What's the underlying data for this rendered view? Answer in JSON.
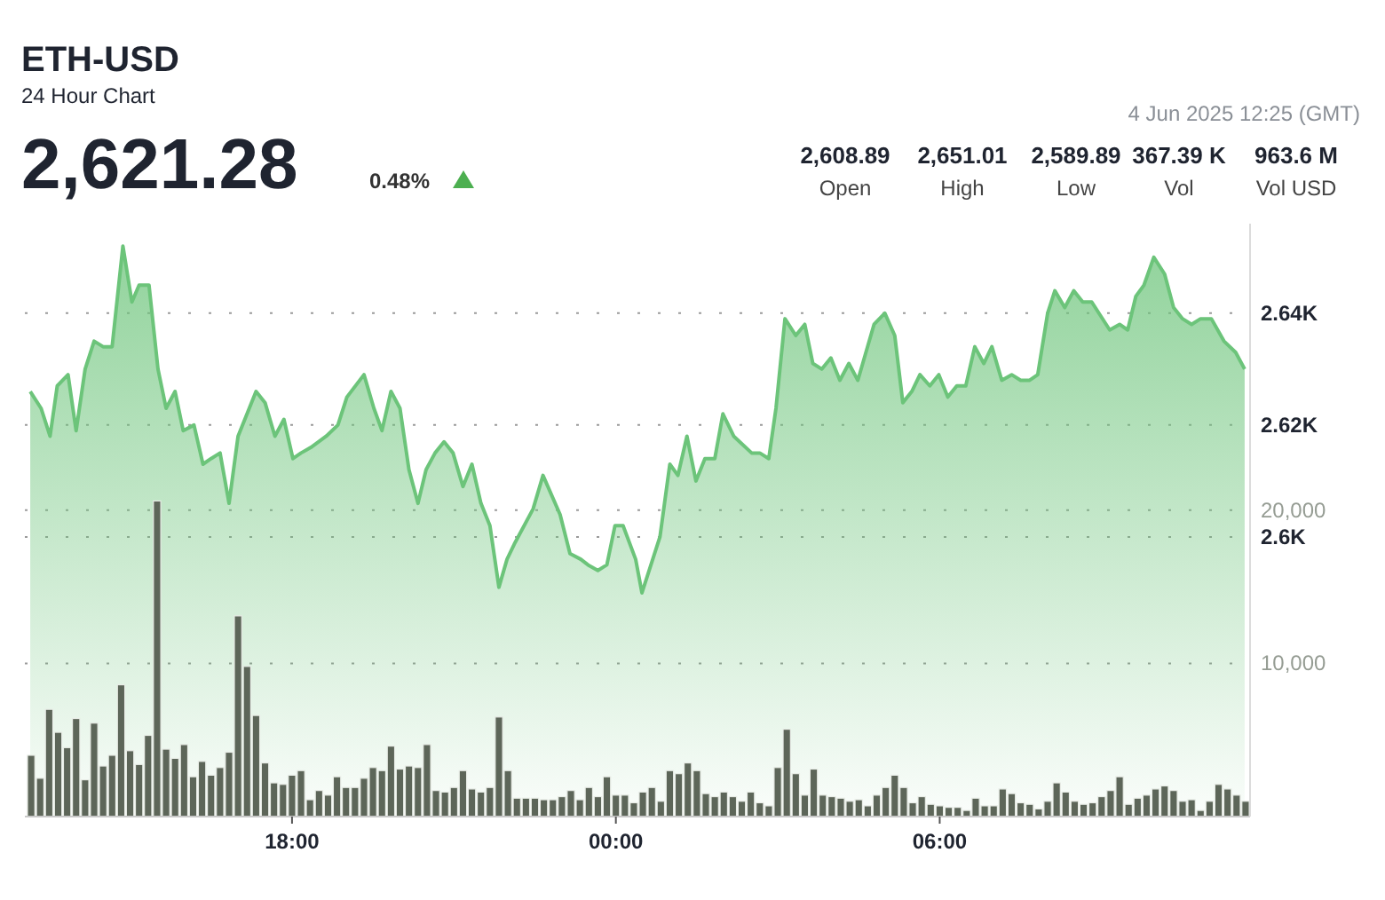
{
  "chart_data": {
    "type": "area",
    "title": "ETH-USD",
    "subtitle": "24 Hour Chart",
    "annotations": [
      "2,621.28",
      "0.48%",
      "4 Jun 2025 12:25 (GMT)",
      "2,608.89",
      "Open",
      "2,651.01",
      "High",
      "2,589.89",
      "Low",
      "367.39 K",
      "Vol",
      "963.6 M",
      "Vol USD"
    ],
    "xlim": [
      "2025-06-03T13:03",
      "2025-06-04T11:45"
    ],
    "xticks": [
      {
        "value": "2025-06-03T18:00",
        "label": "18:00"
      },
      {
        "value": "2025-06-04T00:00",
        "label": "00:00"
      },
      {
        "value": "2025-06-04T06:00",
        "label": "06:00"
      }
    ],
    "ylim": [
      2550,
      2656
    ],
    "yticks": [
      {
        "value": 2600,
        "label": "2.6K"
      },
      {
        "value": 2620,
        "label": "2.62K"
      },
      {
        "value": 2640,
        "label": "2.64K"
      }
    ],
    "y2lim": [
      0,
      38700
    ],
    "y2ticks": [
      {
        "value": 10000,
        "label": "10,000"
      },
      {
        "value": 20000,
        "label": "20,000"
      }
    ],
    "grid": "y",
    "series": [
      {
        "color": "#6cc47a",
        "x": [
          "2025-06-03T13:09",
          "2025-06-03T13:21",
          "2025-06-03T13:31",
          "2025-06-03T13:39",
          "2025-06-03T13:51",
          "2025-06-03T14:00",
          "2025-06-03T14:10",
          "2025-06-03T14:20",
          "2025-06-03T14:30",
          "2025-06-03T14:40",
          "2025-06-03T14:52",
          "2025-06-03T15:02",
          "2025-06-03T15:10",
          "2025-06-03T15:21",
          "2025-06-03T15:31",
          "2025-06-03T15:40",
          "2025-06-03T15:50",
          "2025-06-03T15:59",
          "2025-06-03T16:11",
          "2025-06-03T16:21",
          "2025-06-03T16:30",
          "2025-06-03T16:40",
          "2025-06-03T16:50",
          "2025-06-03T17:00",
          "2025-06-03T17:20",
          "2025-06-03T17:30",
          "2025-06-03T17:41",
          "2025-06-03T17:51",
          "2025-06-03T18:01",
          "2025-06-03T18:10",
          "2025-06-03T18:21",
          "2025-06-03T18:38",
          "2025-06-03T18:51",
          "2025-06-03T19:01",
          "2025-06-03T19:20",
          "2025-06-03T19:31",
          "2025-06-03T19:40",
          "2025-06-03T19:50",
          "2025-06-03T20:00",
          "2025-06-03T20:10",
          "2025-06-03T20:20",
          "2025-06-03T20:29",
          "2025-06-03T20:39",
          "2025-06-03T20:49",
          "2025-06-03T20:59",
          "2025-06-03T21:10",
          "2025-06-03T21:20",
          "2025-06-03T21:30",
          "2025-06-03T21:40",
          "2025-06-03T21:50",
          "2025-06-03T21:59",
          "2025-06-03T22:08",
          "2025-06-03T22:28",
          "2025-06-03T22:39",
          "2025-06-03T22:58",
          "2025-06-03T23:09",
          "2025-06-03T23:21",
          "2025-06-03T23:29",
          "2025-06-03T23:40",
          "2025-06-03T23:50",
          "2025-06-03T23:59",
          "2025-06-04T00:08",
          "2025-06-04T00:22",
          "2025-06-04T00:29",
          "2025-06-04T00:49",
          "2025-06-04T01:00",
          "2025-06-04T01:09",
          "2025-06-04T01:19",
          "2025-06-04T01:29",
          "2025-06-04T01:39",
          "2025-06-04T01:50",
          "2025-06-04T01:59",
          "2025-06-04T02:11",
          "2025-06-04T02:31",
          "2025-06-04T02:40",
          "2025-06-04T02:50",
          "2025-06-04T02:58",
          "2025-06-04T03:08",
          "2025-06-04T03:20",
          "2025-06-04T03:30",
          "2025-06-04T03:39",
          "2025-06-04T03:49",
          "2025-06-04T03:59",
          "2025-06-04T04:09",
          "2025-06-04T04:19",
          "2025-06-04T04:29",
          "2025-06-04T04:47",
          "2025-06-04T04:59",
          "2025-06-04T05:10",
          "2025-06-04T05:19",
          "2025-06-04T05:29",
          "2025-06-04T05:38",
          "2025-06-04T05:49",
          "2025-06-04T05:59",
          "2025-06-04T06:09",
          "2025-06-04T06:19",
          "2025-06-04T06:29",
          "2025-06-04T06:39",
          "2025-06-04T06:49",
          "2025-06-04T06:58",
          "2025-06-04T07:09",
          "2025-06-04T07:20",
          "2025-06-04T07:30",
          "2025-06-04T07:40",
          "2025-06-04T07:49",
          "2025-06-04T08:00",
          "2025-06-04T08:08",
          "2025-06-04T08:19",
          "2025-06-04T08:29",
          "2025-06-04T08:39",
          "2025-06-04T08:49",
          "2025-06-04T09:09",
          "2025-06-04T09:20",
          "2025-06-04T09:29",
          "2025-06-04T09:38",
          "2025-06-04T09:47",
          "2025-06-04T09:58",
          "2025-06-04T10:10",
          "2025-06-04T10:20",
          "2025-06-04T10:30",
          "2025-06-04T10:40",
          "2025-06-04T10:50",
          "2025-06-04T11:02",
          "2025-06-04T11:16",
          "2025-06-04T11:29",
          "2025-06-04T11:39"
        ],
        "values": [
          2626,
          2623,
          2618,
          2627,
          2629,
          2619,
          2630,
          2635,
          2634,
          2634,
          2652,
          2642,
          2645,
          2645,
          2630,
          2623,
          2626,
          2619,
          2620,
          2613,
          2614,
          2615,
          2606,
          2618,
          2626,
          2624,
          2618,
          2621,
          2614,
          2615,
          2616,
          2618,
          2620,
          2625,
          2629,
          2623,
          2619,
          2626,
          2623,
          2612,
          2606,
          2612,
          2615,
          2617,
          2615,
          2609,
          2613,
          2606,
          2602,
          2591,
          2596,
          2599,
          2605,
          2611,
          2604,
          2597,
          2596,
          2595,
          2594,
          2595,
          2602,
          2602,
          2596,
          2590,
          2600,
          2613,
          2611,
          2618,
          2610,
          2614,
          2614,
          2622,
          2618,
          2615,
          2615,
          2614,
          2623,
          2639,
          2636,
          2638,
          2631,
          2630,
          2632,
          2628,
          2631,
          2628,
          2638,
          2640,
          2636,
          2624,
          2626,
          2629,
          2627,
          2629,
          2625,
          2627,
          2627,
          2634,
          2631,
          2634,
          2628,
          2629,
          2628,
          2628,
          2629,
          2640,
          2644,
          2641,
          2644,
          2642,
          2642,
          2637,
          2638,
          2637,
          2643,
          2645,
          2650,
          2647,
          2641,
          2639,
          2638,
          2639,
          2639,
          2635,
          2633,
          2630
        ]
      },
      {
        "type": "bar",
        "axis": "y2",
        "color": "#5d6659",
        "x": [
          "2025-06-03T13:10",
          "2025-06-03T13:20",
          "2025-06-03T13:30",
          "2025-06-03T13:40",
          "2025-06-03T13:50",
          "2025-06-03T14:00",
          "2025-06-03T14:10",
          "2025-06-03T14:20",
          "2025-06-03T14:30",
          "2025-06-03T14:40",
          "2025-06-03T14:50",
          "2025-06-03T15:00",
          "2025-06-03T15:10",
          "2025-06-03T15:20",
          "2025-06-03T15:30",
          "2025-06-03T15:40",
          "2025-06-03T15:50",
          "2025-06-03T16:00",
          "2025-06-03T16:10",
          "2025-06-03T16:20",
          "2025-06-03T16:30",
          "2025-06-03T16:40",
          "2025-06-03T16:50",
          "2025-06-03T17:00",
          "2025-06-03T17:10",
          "2025-06-03T17:20",
          "2025-06-03T17:30",
          "2025-06-03T17:40",
          "2025-06-03T17:50",
          "2025-06-03T18:00",
          "2025-06-03T18:10",
          "2025-06-03T18:20",
          "2025-06-03T18:30",
          "2025-06-03T18:40",
          "2025-06-03T18:50",
          "2025-06-03T19:00",
          "2025-06-03T19:10",
          "2025-06-03T19:20",
          "2025-06-03T19:30",
          "2025-06-03T19:40",
          "2025-06-03T19:50",
          "2025-06-03T20:00",
          "2025-06-03T20:10",
          "2025-06-03T20:20",
          "2025-06-03T20:30",
          "2025-06-03T20:40",
          "2025-06-03T20:50",
          "2025-06-03T21:00",
          "2025-06-03T21:10",
          "2025-06-03T21:20",
          "2025-06-03T21:30",
          "2025-06-03T21:40",
          "2025-06-03T21:50",
          "2025-06-03T22:00",
          "2025-06-03T22:10",
          "2025-06-03T22:20",
          "2025-06-03T22:30",
          "2025-06-03T22:40",
          "2025-06-03T22:50",
          "2025-06-03T23:00",
          "2025-06-03T23:10",
          "2025-06-03T23:20",
          "2025-06-03T23:30",
          "2025-06-03T23:40",
          "2025-06-03T23:50",
          "2025-06-04T00:00",
          "2025-06-04T00:10",
          "2025-06-04T00:20",
          "2025-06-04T00:30",
          "2025-06-04T00:40",
          "2025-06-04T00:50",
          "2025-06-04T01:00",
          "2025-06-04T01:10",
          "2025-06-04T01:20",
          "2025-06-04T01:30",
          "2025-06-04T01:40",
          "2025-06-04T01:50",
          "2025-06-04T02:00",
          "2025-06-04T02:10",
          "2025-06-04T02:20",
          "2025-06-04T02:30",
          "2025-06-04T02:40",
          "2025-06-04T02:50",
          "2025-06-04T03:00",
          "2025-06-04T03:10",
          "2025-06-04T03:20",
          "2025-06-04T03:30",
          "2025-06-04T03:40",
          "2025-06-04T03:50",
          "2025-06-04T04:00",
          "2025-06-04T04:10",
          "2025-06-04T04:20",
          "2025-06-04T04:30",
          "2025-06-04T04:40",
          "2025-06-04T04:50",
          "2025-06-04T05:00",
          "2025-06-04T05:10",
          "2025-06-04T05:20",
          "2025-06-04T05:30",
          "2025-06-04T05:40",
          "2025-06-04T05:50",
          "2025-06-04T06:00",
          "2025-06-04T06:10",
          "2025-06-04T06:20",
          "2025-06-04T06:30",
          "2025-06-04T06:40",
          "2025-06-04T06:50",
          "2025-06-04T07:00",
          "2025-06-04T07:10",
          "2025-06-04T07:20",
          "2025-06-04T07:30",
          "2025-06-04T07:40",
          "2025-06-04T07:50",
          "2025-06-04T08:00",
          "2025-06-04T08:10",
          "2025-06-04T08:20",
          "2025-06-04T08:30",
          "2025-06-04T08:40",
          "2025-06-04T08:50",
          "2025-06-04T09:00",
          "2025-06-04T09:10",
          "2025-06-04T09:20",
          "2025-06-04T09:30",
          "2025-06-04T09:40",
          "2025-06-04T09:50",
          "2025-06-04T10:00",
          "2025-06-04T10:10",
          "2025-06-04T10:20",
          "2025-06-04T10:30",
          "2025-06-04T10:40",
          "2025-06-04T10:50",
          "2025-06-04T11:00",
          "2025-06-04T11:10",
          "2025-06-04T11:20",
          "2025-06-04T11:30",
          "2025-06-04T11:40"
        ],
        "values": [
          4000,
          2500,
          7000,
          5500,
          4500,
          6400,
          2400,
          6100,
          3300,
          4000,
          8600,
          4300,
          3400,
          5300,
          20600,
          4400,
          3800,
          4700,
          2600,
          3600,
          2700,
          3200,
          4200,
          13100,
          9800,
          6600,
          3500,
          2200,
          2100,
          2700,
          3000,
          1100,
          1700,
          1400,
          2600,
          1900,
          1900,
          2500,
          3200,
          3000,
          4600,
          3100,
          3300,
          3200,
          4700,
          1700,
          1600,
          1900,
          3000,
          1800,
          1600,
          1900,
          6500,
          3000,
          1200,
          1200,
          1200,
          1100,
          1100,
          1300,
          1700,
          1100,
          1900,
          1300,
          2600,
          1400,
          1400,
          900,
          1600,
          1900,
          1000,
          3000,
          2800,
          3500,
          3000,
          1500,
          1300,
          1600,
          1300,
          1000,
          1600,
          900,
          700,
          3200,
          5700,
          2800,
          1400,
          3100,
          1400,
          1300,
          1200,
          1000,
          1100,
          700,
          1400,
          1900,
          2700,
          1900,
          900,
          1300,
          800,
          700,
          600,
          600,
          400,
          1200,
          700,
          700,
          1800,
          1500,
          900,
          800,
          500,
          1000,
          2200,
          1600,
          1000,
          800,
          900,
          1300,
          1700,
          2600,
          800,
          1200,
          1400,
          1800,
          2000,
          1700,
          1000,
          1100,
          400,
          1000,
          2100,
          1800,
          1400,
          1000
        ]
      }
    ]
  }
}
